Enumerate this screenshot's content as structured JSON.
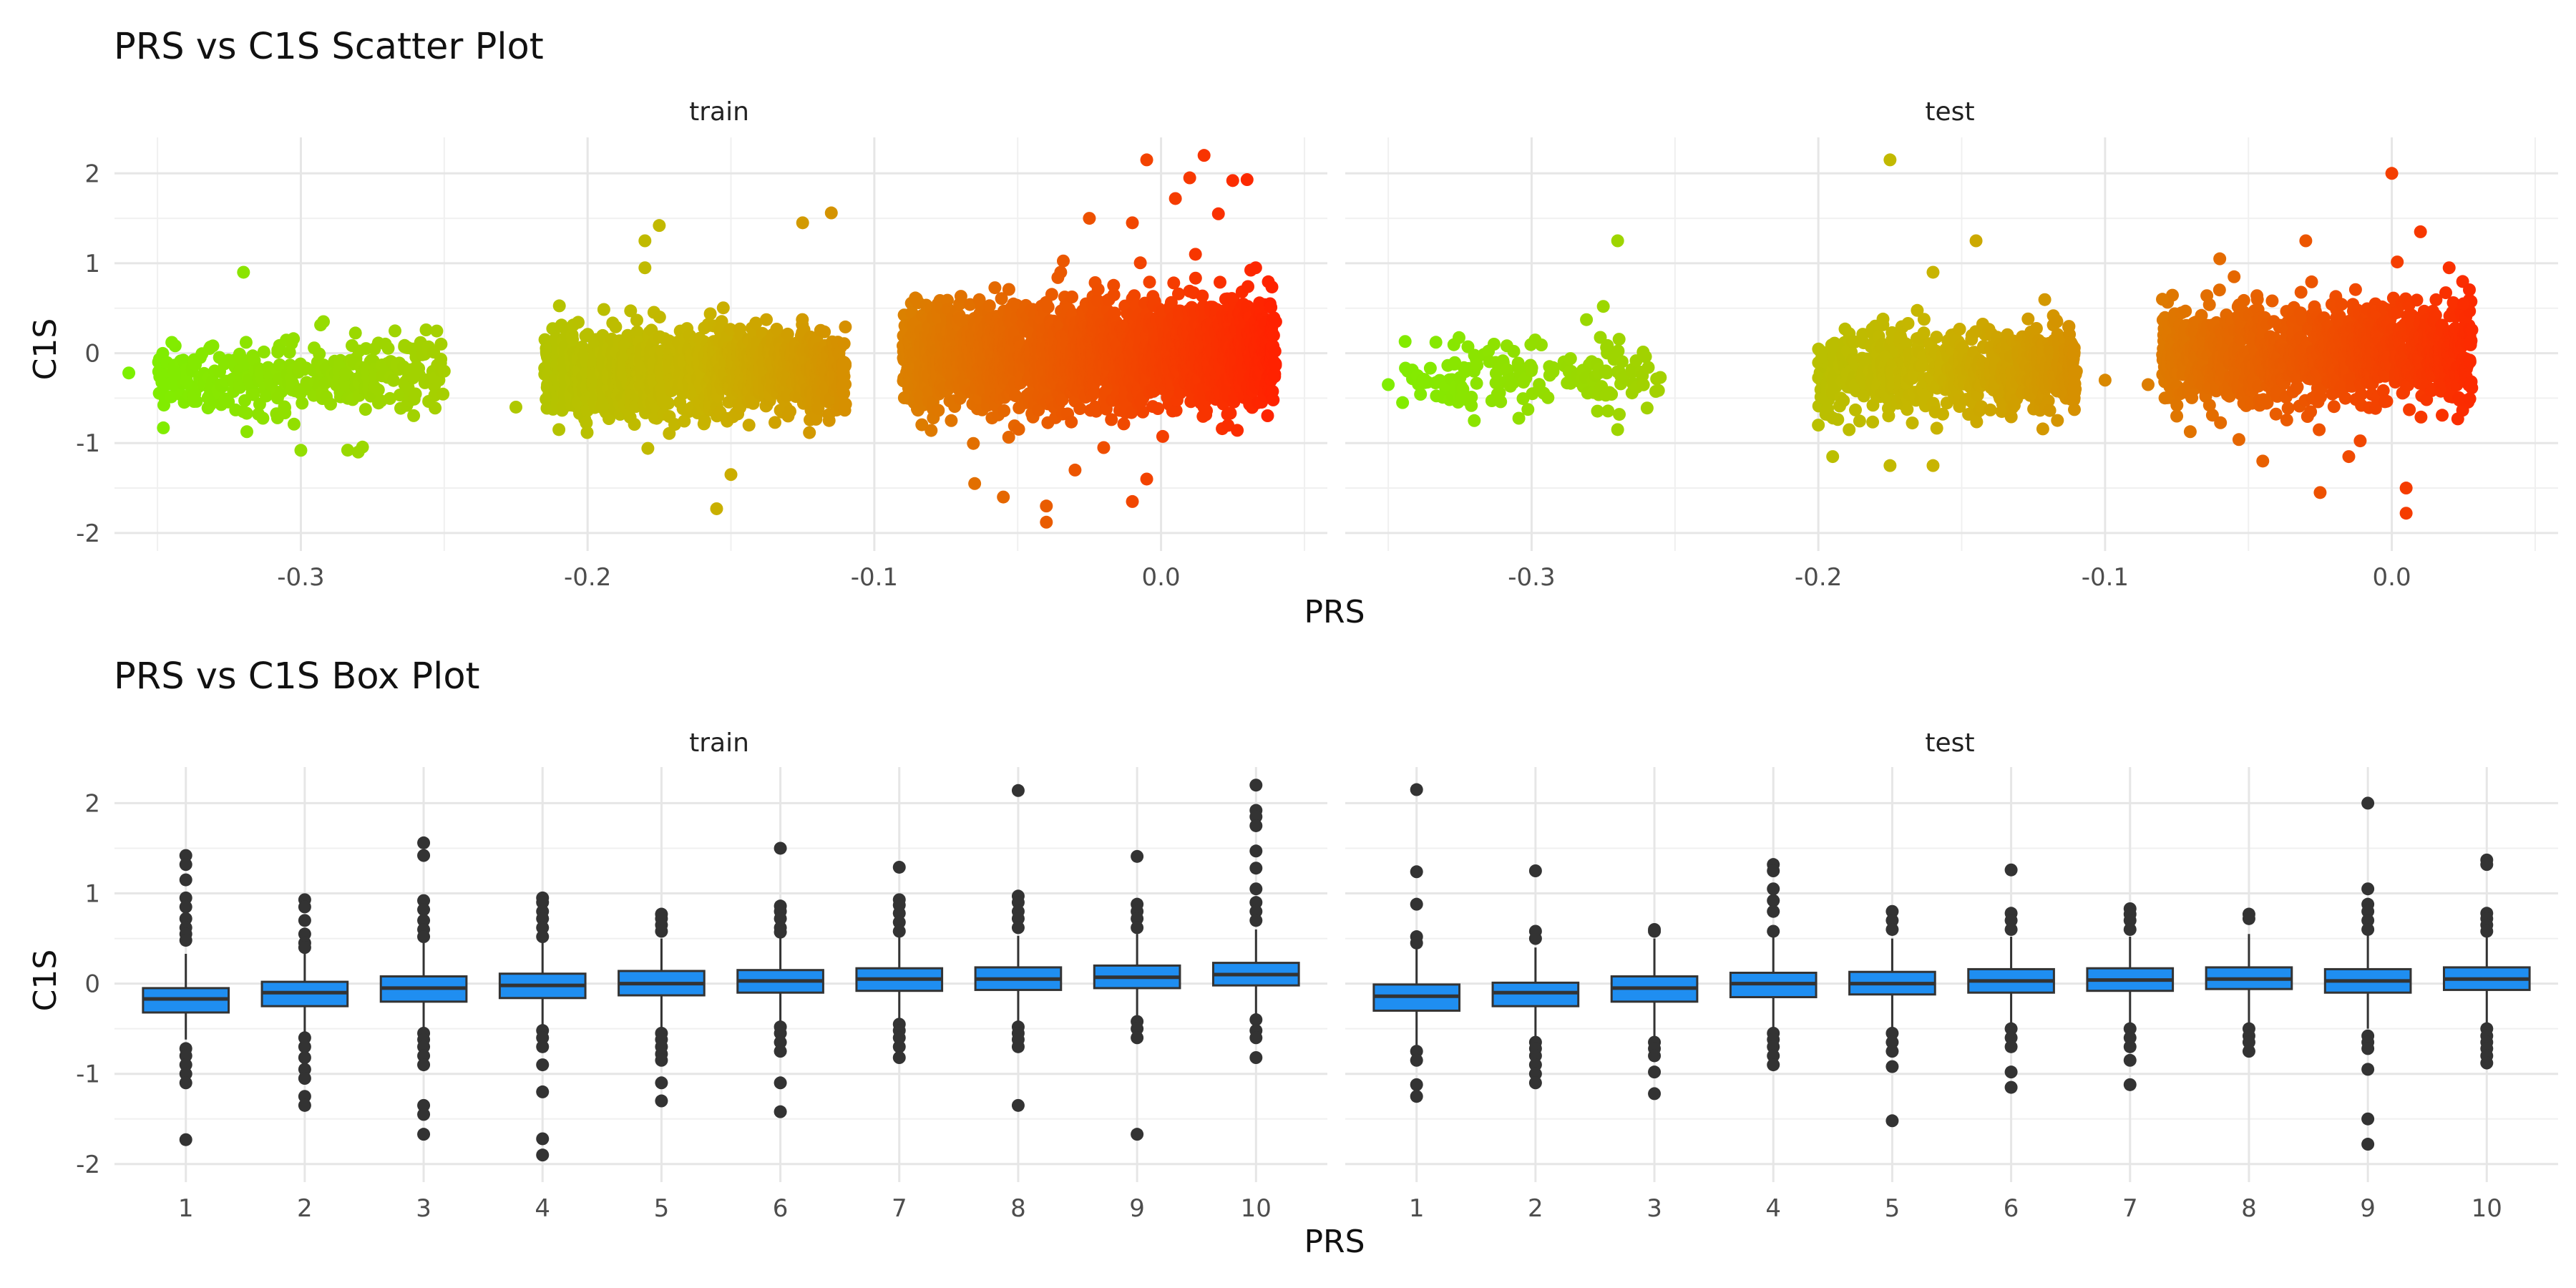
{
  "chart_data": [
    {
      "type": "scatter",
      "title": "PRS vs C1S Scatter Plot",
      "xlabel": "PRS",
      "ylabel": "C1S",
      "xticks": [
        -0.3,
        -0.2,
        -0.1,
        0.0
      ],
      "xtick_labels": [
        "-0.3",
        "-0.2",
        "-0.1",
        "0.0"
      ],
      "yticks": [
        -2,
        -1,
        0,
        1,
        2
      ],
      "ytick_labels": [
        "-2",
        "-1",
        "0",
        "1",
        "2"
      ],
      "xlim": [
        -0.365,
        0.058
      ],
      "ylim": [
        -2.2,
        2.4
      ],
      "grid": true,
      "color_gradient": {
        "low": "#7cf000",
        "mid": "#c8b400",
        "high": "#ff2200"
      },
      "facets": [
        {
          "name": "train",
          "clusters": [
            {
              "x_range": [
                -0.35,
                -0.25
              ],
              "y_mean": -0.25,
              "y_sd": 0.2,
              "n": 350
            },
            {
              "x_range": [
                -0.215,
                -0.11
              ],
              "y_mean": -0.2,
              "y_sd": 0.22,
              "n": 1600
            },
            {
              "x_range": [
                -0.09,
                0.04
              ],
              "y_mean": -0.02,
              "y_sd": 0.28,
              "n": 2600
            }
          ],
          "outliers": [
            {
              "x": -0.36,
              "y": -0.22
            },
            {
              "x": -0.32,
              "y": 0.9
            },
            {
              "x": -0.345,
              "y": 0.12
            },
            {
              "x": -0.3,
              "y": -1.08
            },
            {
              "x": -0.28,
              "y": -1.1
            },
            {
              "x": -0.25,
              "y": -0.2
            },
            {
              "x": -0.175,
              "y": 1.42
            },
            {
              "x": -0.18,
              "y": 1.25
            },
            {
              "x": -0.18,
              "y": 0.95
            },
            {
              "x": -0.155,
              "y": -1.73
            },
            {
              "x": -0.15,
              "y": -1.35
            },
            {
              "x": -0.125,
              "y": 1.45
            },
            {
              "x": -0.115,
              "y": 1.56
            },
            {
              "x": -0.21,
              "y": -0.85
            },
            {
              "x": -0.225,
              "y": -0.6
            },
            {
              "x": -0.065,
              "y": -1.45
            },
            {
              "x": -0.055,
              "y": -1.6
            },
            {
              "x": -0.04,
              "y": -1.88
            },
            {
              "x": -0.04,
              "y": -1.7
            },
            {
              "x": -0.03,
              "y": -1.3
            },
            {
              "x": -0.02,
              "y": -1.05
            },
            {
              "x": -0.01,
              "y": -1.65
            },
            {
              "x": -0.005,
              "y": -1.4
            },
            {
              "x": -0.025,
              "y": 1.5
            },
            {
              "x": -0.005,
              "y": 2.15
            },
            {
              "x": 0.005,
              "y": 1.72
            },
            {
              "x": 0.01,
              "y": 1.95
            },
            {
              "x": 0.015,
              "y": 2.2
            },
            {
              "x": 0.02,
              "y": 1.55
            },
            {
              "x": 0.025,
              "y": 1.92
            },
            {
              "x": 0.03,
              "y": 1.93
            },
            {
              "x": 0.033,
              "y": 0.95
            },
            {
              "x": 0.04,
              "y": 0.35
            },
            {
              "x": -0.035,
              "y": 0.9
            },
            {
              "x": -0.01,
              "y": 1.45
            },
            {
              "x": 0.012,
              "y": 1.1
            }
          ]
        },
        {
          "name": "test",
          "clusters": [
            {
              "x_range": [
                -0.345,
                -0.255
              ],
              "y_mean": -0.25,
              "y_sd": 0.2,
              "n": 170
            },
            {
              "x_range": [
                -0.2,
                -0.11
              ],
              "y_mean": -0.2,
              "y_sd": 0.22,
              "n": 800
            },
            {
              "x_range": [
                -0.08,
                0.028
              ],
              "y_mean": -0.02,
              "y_sd": 0.27,
              "n": 1300
            }
          ],
          "outliers": [
            {
              "x": -0.35,
              "y": -0.35
            },
            {
              "x": -0.345,
              "y": -0.55
            },
            {
              "x": -0.32,
              "y": -0.75
            },
            {
              "x": -0.27,
              "y": 1.25
            },
            {
              "x": -0.275,
              "y": 0.52
            },
            {
              "x": -0.27,
              "y": -0.85
            },
            {
              "x": -0.175,
              "y": 2.15
            },
            {
              "x": -0.16,
              "y": 0.9
            },
            {
              "x": -0.145,
              "y": 1.25
            },
            {
              "x": -0.175,
              "y": -1.25
            },
            {
              "x": -0.16,
              "y": -1.25
            },
            {
              "x": -0.195,
              "y": -1.15
            },
            {
              "x": -0.2,
              "y": -0.8
            },
            {
              "x": -0.11,
              "y": -0.2
            },
            {
              "x": -0.1,
              "y": -0.3
            },
            {
              "x": -0.085,
              "y": -0.35
            },
            {
              "x": -0.08,
              "y": 0.6
            },
            {
              "x": -0.075,
              "y": -0.7
            },
            {
              "x": -0.055,
              "y": 0.85
            },
            {
              "x": -0.045,
              "y": -1.2
            },
            {
              "x": -0.03,
              "y": 1.25
            },
            {
              "x": -0.025,
              "y": -1.55
            },
            {
              "x": -0.015,
              "y": -1.15
            },
            {
              "x": 0.0,
              "y": 2.0
            },
            {
              "x": 0.005,
              "y": -1.5
            },
            {
              "x": 0.005,
              "y": -1.78
            },
            {
              "x": 0.01,
              "y": 1.35
            },
            {
              "x": 0.02,
              "y": 0.95
            },
            {
              "x": 0.025,
              "y": 0.55
            },
            {
              "x": -0.06,
              "y": 1.05
            }
          ]
        }
      ]
    },
    {
      "type": "box",
      "title": "PRS vs C1S Box Plot",
      "xlabel": "PRS",
      "ylabel": "C1S",
      "categories": [
        "1",
        "2",
        "3",
        "4",
        "5",
        "6",
        "7",
        "8",
        "9",
        "10"
      ],
      "yticks": [
        -2,
        -1,
        0,
        1,
        2
      ],
      "ytick_labels": [
        "-2",
        "-1",
        "0",
        "1",
        "2"
      ],
      "ylim": [
        -2.2,
        2.4
      ],
      "box_fill": "#1f8ef1",
      "box_stroke": "#333333",
      "grid": true,
      "facets": [
        {
          "name": "train",
          "boxes": [
            {
              "category": "1",
              "q1": -0.32,
              "median": -0.17,
              "q3": -0.05,
              "whisker_low": -0.62,
              "whisker_high": 0.33,
              "outliers": [
                1.42,
                1.32,
                1.15,
                0.95,
                0.85,
                0.72,
                0.62,
                0.55,
                0.48,
                -0.72,
                -0.8,
                -0.9,
                -1.0,
                -1.1,
                -1.73
              ]
            },
            {
              "category": "2",
              "q1": -0.25,
              "median": -0.1,
              "q3": 0.02,
              "whisker_low": -0.58,
              "whisker_high": 0.37,
              "outliers": [
                0.93,
                0.85,
                0.7,
                0.55,
                0.45,
                0.4,
                -0.6,
                -0.7,
                -0.82,
                -0.95,
                -1.05,
                -1.25,
                -1.35
              ]
            },
            {
              "category": "3",
              "q1": -0.2,
              "median": -0.05,
              "q3": 0.08,
              "whisker_low": -0.52,
              "whisker_high": 0.45,
              "outliers": [
                1.56,
                1.42,
                0.92,
                0.82,
                0.7,
                0.6,
                0.52,
                -0.55,
                -0.62,
                -0.7,
                -0.8,
                -0.9,
                -1.35,
                -1.45,
                -1.67
              ]
            },
            {
              "category": "4",
              "q1": -0.16,
              "median": -0.02,
              "q3": 0.11,
              "whisker_low": -0.5,
              "whisker_high": 0.47,
              "outliers": [
                0.95,
                0.9,
                0.8,
                0.72,
                0.62,
                0.52,
                -0.52,
                -0.6,
                -0.7,
                -0.9,
                -1.2,
                -1.72,
                -1.9
              ]
            },
            {
              "category": "5",
              "q1": -0.13,
              "median": 0.0,
              "q3": 0.14,
              "whisker_low": -0.5,
              "whisker_high": 0.5,
              "outliers": [
                0.77,
                0.72,
                0.65,
                0.58,
                -0.55,
                -0.62,
                -0.7,
                -0.78,
                -0.85,
                -1.1,
                -1.3
              ]
            },
            {
              "category": "6",
              "q1": -0.1,
              "median": 0.03,
              "q3": 0.15,
              "whisker_low": -0.45,
              "whisker_high": 0.52,
              "outliers": [
                1.5,
                0.86,
                0.8,
                0.72,
                0.62,
                0.57,
                -0.48,
                -0.55,
                -0.65,
                -0.75,
                -1.1,
                -1.42
              ]
            },
            {
              "category": "7",
              "q1": -0.08,
              "median": 0.05,
              "q3": 0.17,
              "whisker_low": -0.42,
              "whisker_high": 0.52,
              "outliers": [
                1.29,
                0.93,
                0.87,
                0.78,
                0.68,
                0.58,
                -0.45,
                -0.52,
                -0.6,
                -0.7,
                -0.82
              ]
            },
            {
              "category": "8",
              "q1": -0.07,
              "median": 0.05,
              "q3": 0.18,
              "whisker_low": -0.42,
              "whisker_high": 0.53,
              "outliers": [
                2.14,
                0.97,
                0.9,
                0.8,
                0.72,
                0.62,
                -0.48,
                -0.55,
                -0.62,
                -0.7,
                -1.35
              ]
            },
            {
              "category": "9",
              "q1": -0.05,
              "median": 0.07,
              "q3": 0.2,
              "whisker_low": -0.38,
              "whisker_high": 0.55,
              "outliers": [
                1.41,
                0.88,
                0.8,
                0.72,
                0.62,
                -0.42,
                -0.5,
                -0.6,
                -1.67
              ]
            },
            {
              "category": "10",
              "q1": -0.02,
              "median": 0.1,
              "q3": 0.23,
              "whisker_low": -0.35,
              "whisker_high": 0.6,
              "outliers": [
                2.2,
                1.92,
                1.85,
                1.75,
                1.47,
                1.28,
                1.05,
                0.9,
                0.8,
                0.7,
                -0.4,
                -0.52,
                -0.6,
                -0.82
              ]
            }
          ]
        },
        {
          "name": "test",
          "boxes": [
            {
              "category": "1",
              "q1": -0.3,
              "median": -0.14,
              "q3": -0.01,
              "whisker_low": -0.68,
              "whisker_high": 0.4,
              "outliers": [
                2.15,
                1.24,
                0.88,
                0.52,
                0.45,
                -0.75,
                -0.85,
                -1.12,
                -1.25
              ]
            },
            {
              "category": "2",
              "q1": -0.25,
              "median": -0.1,
              "q3": 0.01,
              "whisker_low": -0.62,
              "whisker_high": 0.4,
              "outliers": [
                1.25,
                0.58,
                0.5,
                -0.65,
                -0.72,
                -0.8,
                -0.9,
                -1.0,
                -1.1
              ]
            },
            {
              "category": "3",
              "q1": -0.2,
              "median": -0.05,
              "q3": 0.08,
              "whisker_low": -0.6,
              "whisker_high": 0.5,
              "outliers": [
                0.6,
                0.58,
                -0.65,
                -0.72,
                -0.8,
                -0.98,
                -1.22
              ]
            },
            {
              "category": "4",
              "q1": -0.15,
              "median": 0.0,
              "q3": 0.12,
              "whisker_low": -0.5,
              "whisker_high": 0.52,
              "outliers": [
                1.32,
                1.25,
                1.05,
                0.92,
                0.8,
                0.58,
                -0.55,
                -0.62,
                -0.7,
                -0.8,
                -0.9
              ]
            },
            {
              "category": "5",
              "q1": -0.12,
              "median": 0.0,
              "q3": 0.13,
              "whisker_low": -0.52,
              "whisker_high": 0.5,
              "outliers": [
                0.8,
                0.7,
                0.6,
                -0.55,
                -0.65,
                -0.75,
                -0.92,
                -1.52
              ]
            },
            {
              "category": "6",
              "q1": -0.1,
              "median": 0.03,
              "q3": 0.16,
              "whisker_low": -0.45,
              "whisker_high": 0.52,
              "outliers": [
                1.26,
                0.78,
                0.7,
                0.6,
                -0.5,
                -0.6,
                -0.7,
                -0.98,
                -1.15
              ]
            },
            {
              "category": "7",
              "q1": -0.08,
              "median": 0.04,
              "q3": 0.17,
              "whisker_low": -0.45,
              "whisker_high": 0.52,
              "outliers": [
                0.83,
                0.77,
                0.7,
                0.6,
                -0.5,
                -0.6,
                -0.7,
                -0.85,
                -1.12
              ]
            },
            {
              "category": "8",
              "q1": -0.06,
              "median": 0.05,
              "q3": 0.18,
              "whisker_low": -0.48,
              "whisker_high": 0.55,
              "outliers": [
                0.77,
                0.72,
                -0.5,
                -0.58,
                -0.65,
                -0.75
              ]
            },
            {
              "category": "9",
              "q1": -0.1,
              "median": 0.03,
              "q3": 0.16,
              "whisker_low": -0.5,
              "whisker_high": 0.55,
              "outliers": [
                2.0,
                1.05,
                0.88,
                0.8,
                0.7,
                0.6,
                -0.58,
                -0.65,
                -0.72,
                -0.95,
                -1.5,
                -1.78
              ]
            },
            {
              "category": "10",
              "q1": -0.07,
              "median": 0.05,
              "q3": 0.18,
              "whisker_low": -0.45,
              "whisker_high": 0.55,
              "outliers": [
                1.37,
                1.32,
                0.78,
                0.72,
                0.65,
                0.58,
                -0.5,
                -0.58,
                -0.65,
                -0.72,
                -0.8,
                -0.88
              ]
            }
          ]
        }
      ]
    }
  ]
}
